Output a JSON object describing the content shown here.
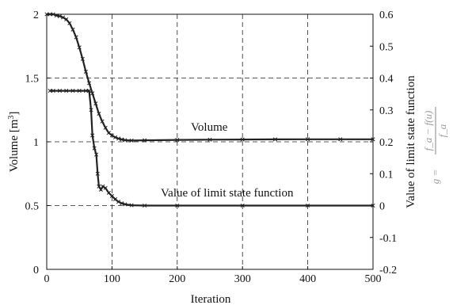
{
  "chart_data": {
    "type": "line",
    "xlabel": "Iteration",
    "ylabel_left": "Volume [m3]",
    "ylabel_left_base": "Volume [m",
    "ylabel_left_sup": "3",
    "ylabel_left_close": "]",
    "ylabel_right": "Value of limit state function",
    "right_formula": {
      "lhs": "g =",
      "numerator": "f_a − f(u)",
      "denominator": "f_a"
    },
    "xlim": [
      0,
      500
    ],
    "ylim_left": [
      0,
      2
    ],
    "ylim_right": [
      -0.2,
      0.6
    ],
    "xticks": [
      "0",
      "100",
      "200",
      "300",
      "400",
      "500"
    ],
    "yticks_left": [
      "0",
      "0.5",
      "1",
      "1.5",
      "2"
    ],
    "yticks_right": [
      "-0.2",
      "-0.1",
      "0",
      "0.1",
      "0.2",
      "0.3",
      "0.4",
      "0.5",
      "0.6"
    ],
    "grid": "dashed",
    "annotations": [
      "Volume",
      "Value of limit state function"
    ],
    "series": [
      {
        "axis": "left",
        "marker": "x",
        "points": [
          [
            0,
            2.0
          ],
          [
            5,
            2.0
          ],
          [
            10,
            2.0
          ],
          [
            15,
            1.99
          ],
          [
            20,
            1.985
          ],
          [
            25,
            1.975
          ],
          [
            30,
            1.96
          ],
          [
            35,
            1.93
          ],
          [
            40,
            1.88
          ],
          [
            45,
            1.82
          ],
          [
            50,
            1.74
          ],
          [
            55,
            1.65
          ],
          [
            60,
            1.55
          ],
          [
            65,
            1.46
          ],
          [
            70,
            1.38
          ],
          [
            75,
            1.3
          ],
          [
            80,
            1.22
          ],
          [
            85,
            1.16
          ],
          [
            90,
            1.11
          ],
          [
            95,
            1.07
          ],
          [
            100,
            1.05
          ],
          [
            105,
            1.035
          ],
          [
            110,
            1.025
          ],
          [
            115,
            1.018
          ],
          [
            120,
            1.013
          ],
          [
            130,
            1.01
          ],
          [
            150,
            1.012
          ],
          [
            200,
            1.015
          ],
          [
            250,
            1.017
          ],
          [
            300,
            1.018
          ],
          [
            350,
            1.019
          ],
          [
            400,
            1.02
          ],
          [
            450,
            1.02
          ],
          [
            500,
            1.02
          ]
        ]
      },
      {
        "axis": "right",
        "marker": "x",
        "points": [
          [
            5,
            0.36
          ],
          [
            10,
            0.36
          ],
          [
            20,
            0.36
          ],
          [
            30,
            0.36
          ],
          [
            40,
            0.36
          ],
          [
            50,
            0.36
          ],
          [
            60,
            0.36
          ],
          [
            65,
            0.36
          ],
          [
            68,
            0.3
          ],
          [
            70,
            0.22
          ],
          [
            73,
            0.18
          ],
          [
            76,
            0.16
          ],
          [
            78,
            0.1
          ],
          [
            80,
            0.06
          ],
          [
            83,
            0.05
          ],
          [
            86,
            0.06
          ],
          [
            90,
            0.055
          ],
          [
            95,
            0.04
          ],
          [
            100,
            0.03
          ],
          [
            105,
            0.02
          ],
          [
            110,
            0.012
          ],
          [
            115,
            0.007
          ],
          [
            120,
            0.004
          ],
          [
            130,
            0.001
          ],
          [
            150,
            0.0
          ],
          [
            200,
            0.0
          ],
          [
            300,
            0.0
          ],
          [
            400,
            0.0
          ],
          [
            500,
            0.0
          ]
        ]
      }
    ]
  }
}
